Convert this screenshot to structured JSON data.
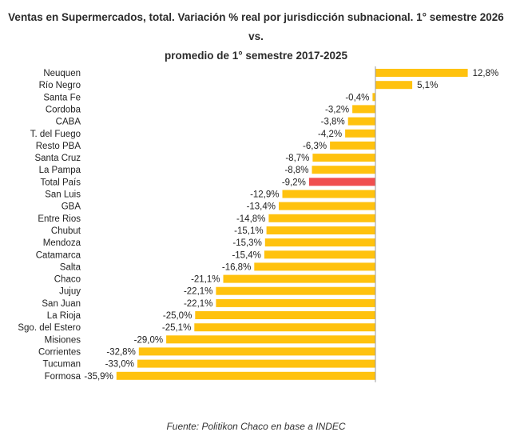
{
  "chart_data": {
    "type": "bar",
    "orientation": "horizontal",
    "title_line1": "Ventas en Supermercados, total. Variación % real por jurisdicción subnacional. 1° semestre 2026 vs.",
    "title_line2": "promedio de 1° semestre 2017-2025",
    "source": "Fuente: Politikon Chaco en base a INDEC",
    "categories": [
      "Neuquen",
      "Río Negro",
      "Santa Fe",
      "Cordoba",
      "CABA",
      "T. del Fuego",
      "Resto PBA",
      "Santa Cruz",
      "La Pampa",
      "Total País",
      "San Luis",
      "GBA",
      "Entre Rios",
      "Chubut",
      "Mendoza",
      "Catamarca",
      "Salta",
      "Chaco",
      "Jujuy",
      "San Juan",
      "La Rioja",
      "Sgo. del Estero",
      "Misiones",
      "Corrientes",
      "Tucuman",
      "Formosa"
    ],
    "values": [
      12.8,
      5.1,
      -0.4,
      -3.2,
      -3.8,
      -4.2,
      -6.3,
      -8.7,
      -8.8,
      -9.2,
      -12.9,
      -13.4,
      -14.8,
      -15.1,
      -15.3,
      -15.4,
      -16.8,
      -21.1,
      -22.1,
      -22.1,
      -25.0,
      -25.1,
      -29.0,
      -32.8,
      -33.0,
      -35.9
    ],
    "value_labels": [
      "12,8%",
      "5,1%",
      "-0,4%",
      "-3,2%",
      "-3,8%",
      "-4,2%",
      "-6,3%",
      "-8,7%",
      "-8,8%",
      "-9,2%",
      "-12,9%",
      "-13,4%",
      "-14,8%",
      "-15,1%",
      "-15,3%",
      "-15,4%",
      "-16,8%",
      "-21,1%",
      "-22,1%",
      "-22,1%",
      "-25,0%",
      "-25,1%",
      "-29,0%",
      "-32,8%",
      "-33,0%",
      "-35,9%"
    ],
    "highlight": "Total País",
    "colors": {
      "bar": "#FFC20E",
      "highlight": "#F04E4E",
      "axis": "#999999"
    },
    "xlim": [
      -36,
      15
    ],
    "grid": false,
    "legend": "none"
  }
}
